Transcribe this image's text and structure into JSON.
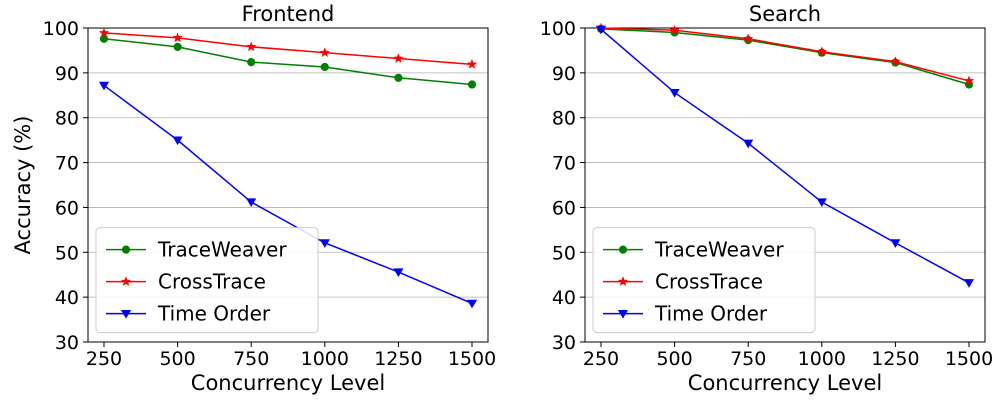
{
  "chart_data": [
    {
      "type": "line",
      "title": "Frontend",
      "xlabel": "Concurrency Level",
      "ylabel": "Accuracy (%)",
      "x": [
        250,
        500,
        750,
        1000,
        1250,
        1500
      ],
      "xticks": [
        "250",
        "500",
        "750",
        "1000",
        "1250",
        "1500"
      ],
      "yticks": [
        "30",
        "40",
        "50",
        "60",
        "70",
        "80",
        "90",
        "100"
      ],
      "ylim": [
        30,
        100
      ],
      "grid": "horizontal",
      "legend_position": "lower-left",
      "series": [
        {
          "name": "TraceWeaver",
          "color": "#008000",
          "marker": "circle",
          "values": [
            97.6,
            95.8,
            92.4,
            91.3,
            88.9,
            87.4
          ]
        },
        {
          "name": "CrossTrace",
          "color": "#ff0000",
          "marker": "star",
          "values": [
            98.9,
            97.8,
            95.8,
            94.5,
            93.2,
            91.9
          ]
        },
        {
          "name": "Time Order",
          "color": "#0000ff",
          "marker": "triangle-down",
          "values": [
            87.2,
            75.0,
            61.2,
            52.1,
            45.6,
            38.6
          ]
        }
      ]
    },
    {
      "type": "line",
      "title": "Search",
      "xlabel": "Concurrency Level",
      "ylabel": "",
      "x": [
        250,
        500,
        750,
        1000,
        1250,
        1500
      ],
      "xticks": [
        "250",
        "500",
        "750",
        "1000",
        "1250",
        "1500"
      ],
      "yticks": [
        "30",
        "40",
        "50",
        "60",
        "70",
        "80",
        "90",
        "100"
      ],
      "ylim": [
        30,
        100
      ],
      "grid": "horizontal",
      "legend_position": "lower-left",
      "series": [
        {
          "name": "TraceWeaver",
          "color": "#008000",
          "marker": "circle",
          "values": [
            99.8,
            99.0,
            97.3,
            94.5,
            92.3,
            87.4
          ]
        },
        {
          "name": "CrossTrace",
          "color": "#ff0000",
          "marker": "star",
          "values": [
            100.0,
            99.5,
            97.6,
            94.7,
            92.5,
            88.2
          ]
        },
        {
          "name": "Time Order",
          "color": "#0000ff",
          "marker": "triangle-down",
          "values": [
            99.7,
            85.6,
            74.3,
            61.2,
            52.1,
            43.2
          ]
        }
      ]
    }
  ]
}
